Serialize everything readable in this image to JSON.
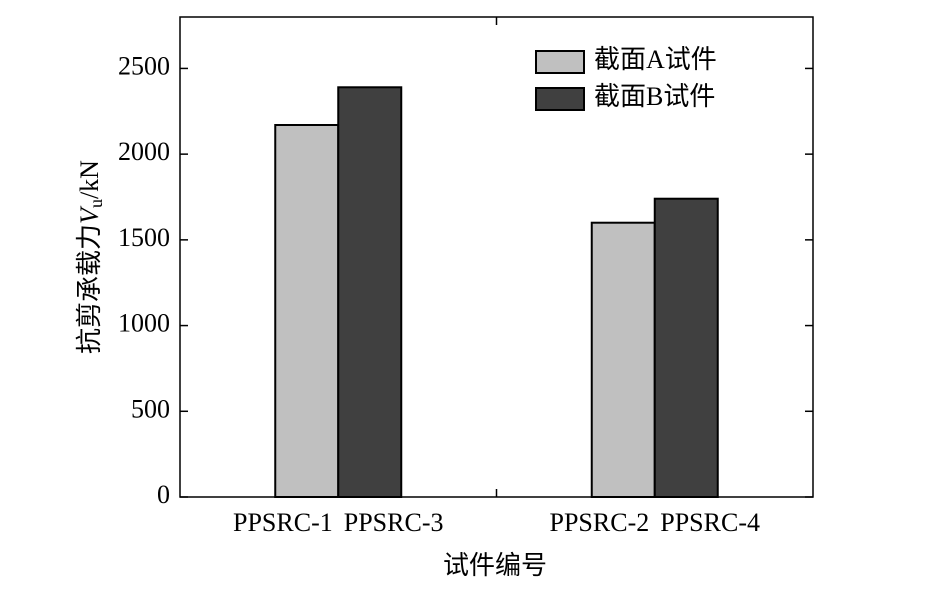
{
  "chart_data": {
    "type": "bar",
    "y_label": {
      "prefix": "抗剪承载力",
      "symbol": "V",
      "subscript": "u",
      "unit": "/kN"
    },
    "x_label": "试件编号",
    "categories": [
      "PPSRC-1",
      "PPSRC-3",
      "PPSRC-2",
      "PPSRC-4"
    ],
    "series": [
      {
        "name": "截面A试件",
        "color": "#c0c0c0",
        "values": [
          2170,
          null,
          1600,
          null
        ]
      },
      {
        "name": "截面B试件",
        "color": "#404040",
        "values": [
          null,
          2390,
          null,
          1740
        ]
      }
    ],
    "ylim": [
      0,
      2800
    ],
    "yticks": [
      0,
      500,
      1000,
      1500,
      2000,
      2500
    ],
    "legend": "upper right"
  }
}
